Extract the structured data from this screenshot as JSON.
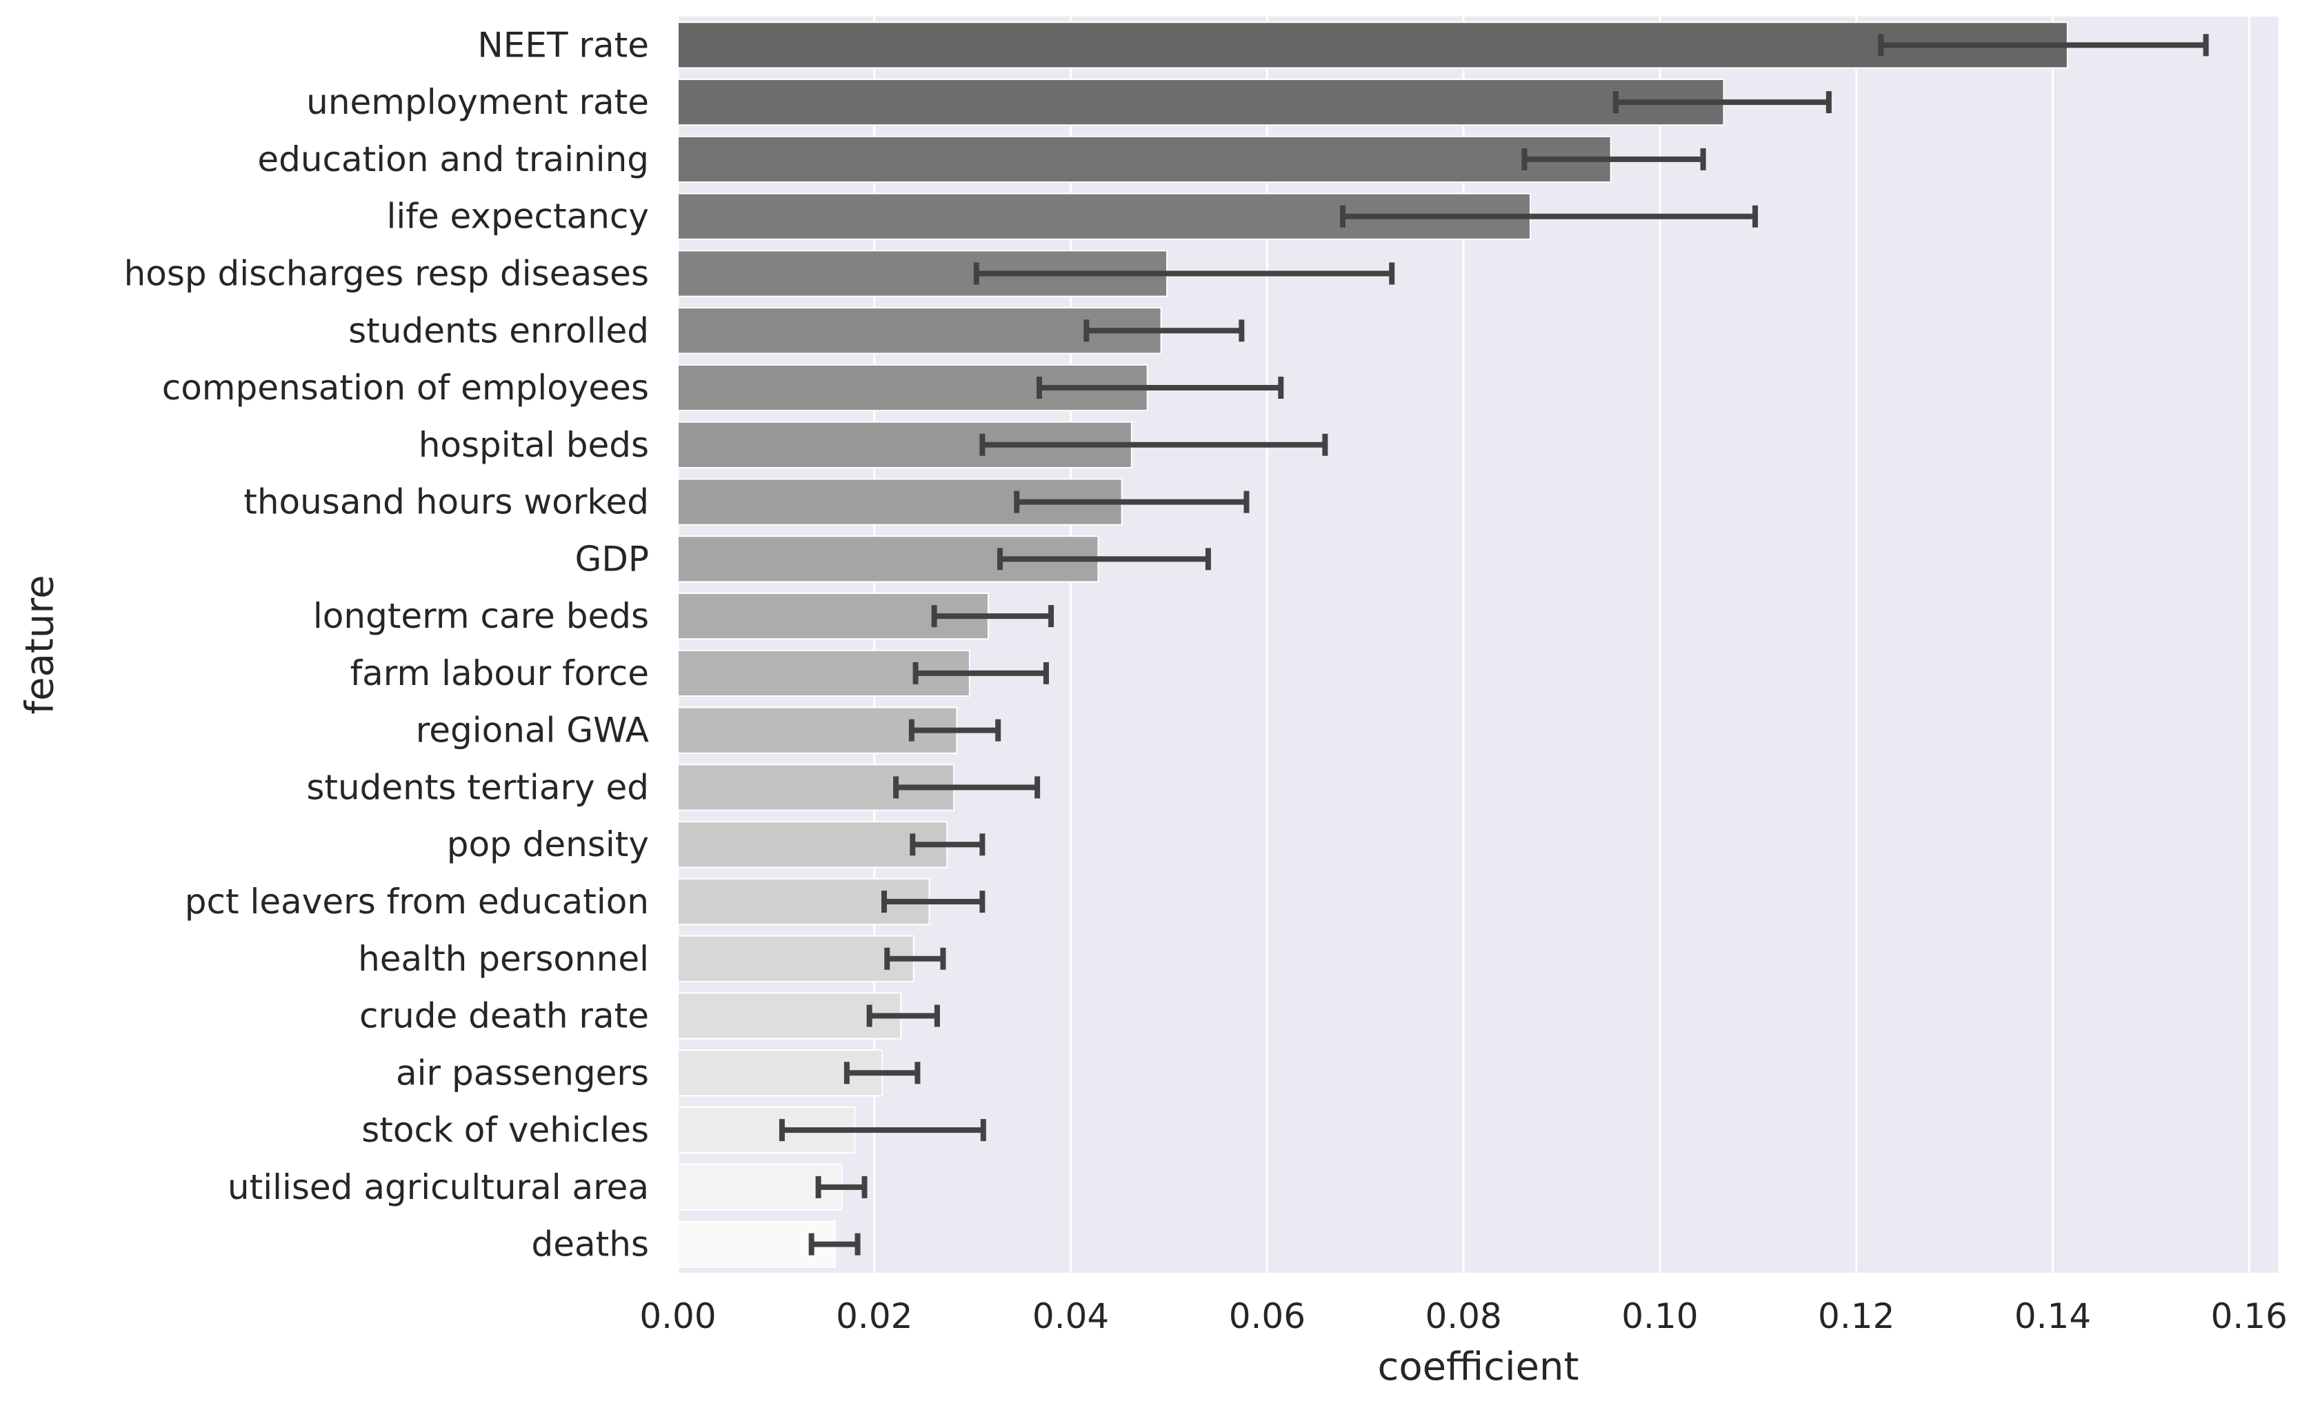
{
  "chart_data": {
    "type": "bar",
    "orientation": "horizontal",
    "title": "",
    "xlabel": "coefficient",
    "ylabel": "feature",
    "xlim": [
      0,
      0.163
    ],
    "xticks": [
      0.0,
      0.02,
      0.04,
      0.06,
      0.08,
      0.1,
      0.12,
      0.14,
      0.16
    ],
    "xtick_labels": [
      "0.00",
      "0.02",
      "0.04",
      "0.06",
      "0.08",
      "0.10",
      "0.12",
      "0.14",
      "0.16"
    ],
    "grid": true,
    "legend": "none",
    "bar_color_start": "#666666",
    "bar_color_end": "#fafafa",
    "errorbar_color": "#424242",
    "background": "#eaeaf2",
    "categories": [
      "NEET rate",
      "unemployment rate",
      "education and training",
      "life expectancy",
      "hosp discharges resp diseases",
      "students enrolled",
      "compensation of employees",
      "hospital beds",
      "thousand hours worked",
      "GDP",
      "longterm care beds",
      "farm labour force",
      "regional GWA",
      "students tertiary ed",
      "pop density",
      "pct leavers from education",
      "health personnel",
      "crude death rate",
      "air passengers",
      "stock of vehicles",
      "utilised agricultural area",
      "deaths"
    ],
    "values": [
      0.1415,
      0.1065,
      0.095,
      0.0868,
      0.0498,
      0.0492,
      0.0478,
      0.0462,
      0.0452,
      0.0428,
      0.0316,
      0.0297,
      0.0284,
      0.0281,
      0.0274,
      0.0256,
      0.024,
      0.0227,
      0.0208,
      0.018,
      0.0167,
      0.016
    ],
    "error_low": [
      0.1225,
      0.0955,
      0.0862,
      0.0677,
      0.0304,
      0.0416,
      0.0368,
      0.031,
      0.0345,
      0.0328,
      0.0261,
      0.0242,
      0.0238,
      0.0222,
      0.0239,
      0.021,
      0.0213,
      0.0195,
      0.0172,
      0.0106,
      0.0143,
      0.0136
    ],
    "error_high": [
      0.1556,
      0.1172,
      0.1044,
      0.1097,
      0.0727,
      0.0574,
      0.0614,
      0.0659,
      0.0579,
      0.054,
      0.038,
      0.0375,
      0.0326,
      0.0366,
      0.031,
      0.031,
      0.027,
      0.0264,
      0.0244,
      0.0311,
      0.019,
      0.0183
    ]
  }
}
